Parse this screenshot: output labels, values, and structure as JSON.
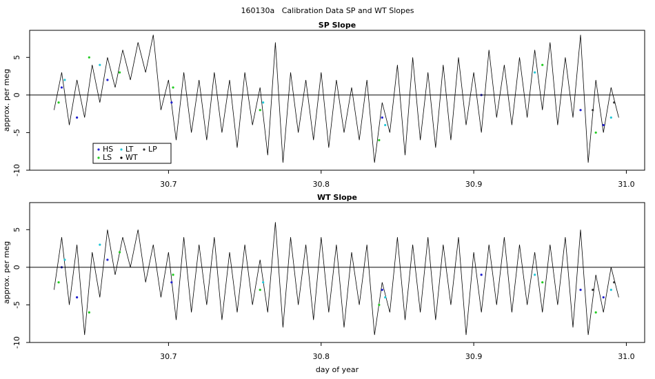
{
  "suptitle": "160130a   Calibration Data SP and WT Slopes",
  "chart_data": [
    {
      "type": "line",
      "title": "SP Slope",
      "ylabel": "approx. per meg",
      "xlim": [
        30.609,
        31.012
      ],
      "xticks": [
        30.7,
        30.8,
        30.9,
        {
          "value": 31.0,
          "label": "31.0"
        }
      ],
      "ylim": [
        -10,
        8.6
      ],
      "yticks": [
        -10,
        -5,
        0,
        5
      ],
      "hline": 0,
      "legend": "bottomleft",
      "x": [
        30.625,
        30.63,
        30.635,
        30.64,
        30.645,
        30.65,
        30.655,
        30.66,
        30.665,
        30.67,
        30.675,
        30.68,
        30.685,
        30.69,
        30.695,
        30.7,
        30.705,
        30.71,
        30.715,
        30.72,
        30.725,
        30.73,
        30.735,
        30.74,
        30.745,
        30.75,
        30.755,
        30.76,
        30.765,
        30.77,
        30.775,
        30.78,
        30.785,
        30.79,
        30.795,
        30.8,
        30.805,
        30.81,
        30.815,
        30.82,
        30.825,
        30.83,
        30.835,
        30.84,
        30.845,
        30.85,
        30.855,
        30.86,
        30.865,
        30.87,
        30.875,
        30.88,
        30.885,
        30.89,
        30.895,
        30.9,
        30.905,
        30.91,
        30.915,
        30.92,
        30.925,
        30.93,
        30.935,
        30.94,
        30.945,
        30.95,
        30.955,
        30.96,
        30.965,
        30.97,
        30.975,
        30.98,
        30.985,
        30.99,
        30.995
      ],
      "series": [
        {
          "name": "WT",
          "color": "#000000",
          "style": "line",
          "values": [
            -2,
            3,
            -4,
            2,
            -3,
            4,
            -1,
            5,
            1,
            6,
            2,
            7,
            3,
            8,
            -2,
            2,
            -6,
            3,
            -5,
            2,
            -6,
            3,
            -5,
            2,
            -7,
            3,
            -4,
            1,
            -8,
            7,
            -9,
            3,
            -5,
            2,
            -6,
            3,
            -7,
            2,
            -5,
            1,
            -6,
            2,
            -9,
            -1,
            -5,
            4,
            -8,
            5,
            -6,
            3,
            -7,
            4,
            -6,
            5,
            -4,
            3,
            -5,
            6,
            -3,
            4,
            -4,
            5,
            -3,
            6,
            -2,
            7,
            -4,
            5,
            -3,
            8,
            -9,
            2,
            -5,
            1,
            -3
          ]
        },
        {
          "name": "HS",
          "color": "#1f1fd0",
          "style": "points",
          "x": [
            30.63,
            30.64,
            30.66,
            30.702,
            30.84,
            30.905,
            30.97,
            30.985
          ],
          "values": [
            1,
            -3,
            2,
            -1,
            -3,
            0,
            -2,
            -4
          ]
        },
        {
          "name": "LT",
          "color": "#22c8d8",
          "style": "points",
          "x": [
            30.632,
            30.655,
            30.762,
            30.842,
            30.94,
            30.99
          ],
          "values": [
            2,
            4,
            -1,
            -4,
            3,
            -3
          ]
        },
        {
          "name": "LS",
          "color": "#22cc22",
          "style": "points",
          "x": [
            30.628,
            30.648,
            30.668,
            30.703,
            30.76,
            30.838,
            30.945,
            30.98
          ],
          "values": [
            -1,
            5,
            3,
            1,
            -2,
            -6,
            4,
            -5
          ]
        },
        {
          "name": "LP",
          "color": "#333333",
          "style": "points",
          "x": [
            30.978,
            30.992
          ],
          "values": [
            -2,
            -1
          ]
        }
      ]
    },
    {
      "type": "line",
      "title": "WT Slope",
      "ylabel": "approx. per meg",
      "xlabel": "day of year",
      "xlim": [
        30.609,
        31.012
      ],
      "xticks": [
        30.7,
        30.8,
        30.9,
        {
          "value": 31.0,
          "label": "31.0"
        }
      ],
      "ylim": [
        -10,
        8.6
      ],
      "yticks": [
        -10,
        -5,
        0,
        5
      ],
      "hline": 0,
      "x": [
        30.625,
        30.63,
        30.635,
        30.64,
        30.645,
        30.65,
        30.655,
        30.66,
        30.665,
        30.67,
        30.675,
        30.68,
        30.685,
        30.69,
        30.695,
        30.7,
        30.705,
        30.71,
        30.715,
        30.72,
        30.725,
        30.73,
        30.735,
        30.74,
        30.745,
        30.75,
        30.755,
        30.76,
        30.765,
        30.77,
        30.775,
        30.78,
        30.785,
        30.79,
        30.795,
        30.8,
        30.805,
        30.81,
        30.815,
        30.82,
        30.825,
        30.83,
        30.835,
        30.84,
        30.845,
        30.85,
        30.855,
        30.86,
        30.865,
        30.87,
        30.875,
        30.88,
        30.885,
        30.89,
        30.895,
        30.9,
        30.905,
        30.91,
        30.915,
        30.92,
        30.925,
        30.93,
        30.935,
        30.94,
        30.945,
        30.95,
        30.955,
        30.96,
        30.965,
        30.97,
        30.975,
        30.98,
        30.985,
        30.99,
        30.995
      ],
      "series": [
        {
          "name": "WT",
          "color": "#000000",
          "style": "line",
          "values": [
            -3,
            4,
            -5,
            3,
            -9,
            2,
            -4,
            5,
            -1,
            4,
            0,
            5,
            -2,
            3,
            -4,
            2,
            -7,
            4,
            -6,
            3,
            -5,
            4,
            -7,
            2,
            -6,
            3,
            -5,
            1,
            -6,
            6,
            -8,
            4,
            -5,
            3,
            -7,
            4,
            -6,
            3,
            -8,
            2,
            -5,
            3,
            -9,
            -2,
            -6,
            4,
            -7,
            3,
            -6,
            4,
            -7,
            3,
            -5,
            4,
            -9,
            2,
            -6,
            3,
            -5,
            4,
            -6,
            3,
            -5,
            2,
            -6,
            3,
            -5,
            4,
            -8,
            5,
            -9,
            -1,
            -6,
            0,
            -4
          ]
        },
        {
          "name": "HS",
          "color": "#1f1fd0",
          "style": "points",
          "x": [
            30.63,
            30.64,
            30.66,
            30.702,
            30.84,
            30.905,
            30.97,
            30.985
          ],
          "values": [
            0,
            -4,
            1,
            -2,
            -3,
            -1,
            -3,
            -4
          ]
        },
        {
          "name": "LT",
          "color": "#22c8d8",
          "style": "points",
          "x": [
            30.632,
            30.655,
            30.762,
            30.842,
            30.94,
            30.99
          ],
          "values": [
            1,
            3,
            -2,
            -4,
            -1,
            -3
          ]
        },
        {
          "name": "LS",
          "color": "#22cc22",
          "style": "points",
          "x": [
            30.628,
            30.648,
            30.668,
            30.703,
            30.76,
            30.838,
            30.945,
            30.98
          ],
          "values": [
            -2,
            -6,
            2,
            -1,
            -3,
            -5,
            -2,
            -6
          ]
        },
        {
          "name": "LP",
          "color": "#333333",
          "style": "points",
          "x": [
            30.978,
            30.992
          ],
          "values": [
            -3,
            -2
          ]
        }
      ]
    }
  ]
}
